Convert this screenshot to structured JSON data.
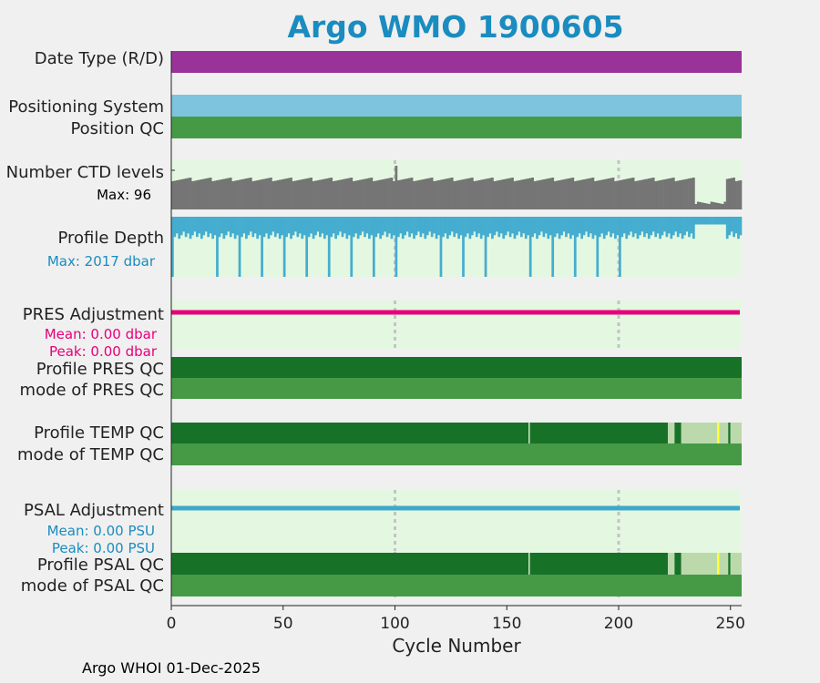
{
  "title": "Argo WMO 1900605",
  "footer": "Argo WHOI 01-Dec-2025",
  "colors": {
    "plot_bg": "#e4f8e1",
    "data_mode": "#993399",
    "positioning": "#7fc4de",
    "qc_good": "#469a46",
    "profile_qc_a": "#177227",
    "ctd": "#757575",
    "depth": "#45adcf",
    "pres_adj": "#e6007a",
    "psal_adj": "#3ea8cb",
    "qc_light": "#bcd9ac",
    "qc_yellow": "#ffff33"
  },
  "labels": {
    "date_type": "Date Type (R/D)",
    "positioning_system": "Positioning System",
    "position_qc": "Position QC",
    "number_ctd_levels": "Number CTD levels",
    "ctd_max": "Max: 96",
    "profile_depth": "Profile Depth",
    "depth_max": "Max: 2017 dbar",
    "pres_adjustment": "PRES Adjustment",
    "pres_mean": "Mean: 0.00 dbar",
    "pres_peak": "Peak: 0.00 dbar",
    "profile_pres_qc": "Profile PRES QC",
    "mode_pres_qc": "mode of PRES QC",
    "profile_temp_qc": "Profile TEMP QC",
    "mode_temp_qc": "mode of TEMP QC",
    "psal_adjustment": "PSAL Adjustment",
    "psal_mean": "Mean: 0.00 PSU",
    "psal_peak": "Peak: 0.00 PSU",
    "profile_psal_qc": "Profile PSAL QC",
    "mode_psal_qc": "mode of PSAL QC"
  },
  "chart_data": {
    "type": "bar",
    "xlabel": "Cycle Number",
    "xlim": [
      0,
      255
    ],
    "xticks": [
      0,
      50,
      100,
      150,
      200,
      250
    ],
    "grid_x": [
      100,
      200
    ],
    "ctd_levels": {
      "max": 96,
      "typical": [
        62,
        70
      ],
      "low_segment": {
        "start": 234,
        "end": 248,
        "value": 12
      }
    },
    "profile_depth": {
      "max_dbar": 2017,
      "typical_dbar": 1000,
      "deep_cycles": [
        0,
        20,
        30,
        40,
        50,
        60,
        70,
        80,
        90,
        100,
        120,
        130,
        140,
        160,
        170,
        180,
        190,
        200
      ],
      "shallow_segment": {
        "start": 234,
        "end": 248
      }
    },
    "profile_temp_qc": {
      "segments": [
        {
          "start": 0,
          "end": 222,
          "grade": "A"
        },
        {
          "start": 222,
          "end": 225,
          "grade": "light"
        },
        {
          "start": 225,
          "end": 228,
          "grade": "A"
        },
        {
          "start": 228,
          "end": 244,
          "grade": "light"
        },
        {
          "start": 244,
          "end": 245,
          "grade": "yellow"
        },
        {
          "start": 245,
          "end": 249,
          "grade": "light"
        },
        {
          "start": 249,
          "end": 250,
          "grade": "A"
        },
        {
          "start": 250,
          "end": 255,
          "grade": "light"
        }
      ],
      "marker_cycle": 160
    },
    "profile_psal_qc": {
      "segments": [
        {
          "start": 0,
          "end": 222,
          "grade": "A"
        },
        {
          "start": 222,
          "end": 225,
          "grade": "light"
        },
        {
          "start": 225,
          "end": 228,
          "grade": "A"
        },
        {
          "start": 228,
          "end": 244,
          "grade": "light"
        },
        {
          "start": 244,
          "end": 245,
          "grade": "yellow"
        },
        {
          "start": 245,
          "end": 249,
          "grade": "light"
        },
        {
          "start": 249,
          "end": 250,
          "grade": "A"
        },
        {
          "start": 250,
          "end": 255,
          "grade": "light"
        }
      ],
      "marker_cycle": 160
    },
    "pres_adjustment": {
      "mean": 0.0,
      "peak": 0.0,
      "unit": "dbar"
    },
    "psal_adjustment": {
      "mean": 0.0,
      "peak": 0.0,
      "unit": "PSU"
    }
  }
}
